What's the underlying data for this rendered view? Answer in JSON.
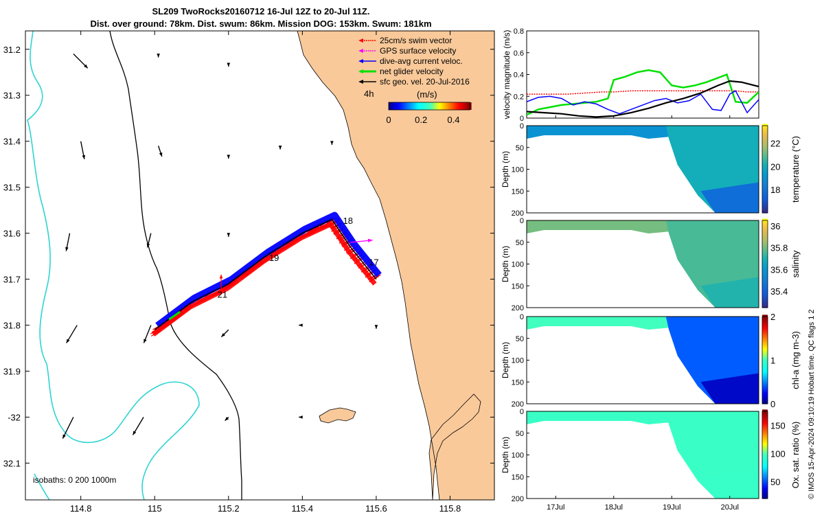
{
  "title_line1": "SL209 TwoRocks20160712 16-Jul 12Z to 20-Jul 11Z.",
  "title_line2": "Dist. over ground: 78km. Dist. swum: 86km. Mission DOG: 153km. Swum: 181km",
  "colors": {
    "land": "#f9c99a",
    "isobath_200": "#000000",
    "isobath_1000": "#2ed3d3",
    "glider_track": "#0000ff",
    "swim_vector": "#ff0000",
    "gps_velocity": "#ff00ff",
    "net_velocity": "#00e000",
    "sfc_geo_velocity": "#000000"
  },
  "chart_data": [
    {
      "id": "map",
      "type": "map",
      "xlim": [
        114.65,
        115.92
      ],
      "ylim": [
        -32.18,
        -31.16
      ],
      "xticks": [
        114.8,
        115,
        115.2,
        115.4,
        115.6,
        115.8
      ],
      "xtick_labels": [
        "114.8",
        "115",
        "115.2",
        "115.4",
        "115.6",
        "115.8"
      ],
      "yticks": [
        -31.2,
        -31.3,
        -31.4,
        -31.5,
        -31.6,
        -31.7,
        -31.8,
        -31.9,
        -32,
        -32.1
      ],
      "ytick_labels": [
        "31.2",
        "31.3",
        "31.4",
        "31.5",
        "31.6",
        "31.7",
        "31.8",
        "31.9",
        "-32",
        "32.1"
      ],
      "legend": [
        {
          "label": "25cm/s swim vector",
          "color": "#ff0000"
        },
        {
          "label": "GPS surface velocity",
          "color": "#ff00ff"
        },
        {
          "label": "dive-avg current veloc.",
          "color": "#0000ff"
        },
        {
          "label": "net glider velocity",
          "color": "#00e000"
        },
        {
          "label": "sfc geo. vel. 20-Jul-2016",
          "color": "#000000"
        }
      ],
      "colorbar": {
        "prefix": "4h",
        "label": "(m/s)",
        "range": [
          0,
          0.5
        ],
        "tick_labels": [
          "0",
          "0.2",
          "0.4"
        ]
      },
      "isobath_text": "isobaths: 0   200  1000m",
      "track": [
        [
          115.0,
          -31.81
        ],
        [
          115.05,
          -31.78
        ],
        [
          115.1,
          -31.75
        ],
        [
          115.2,
          -31.71
        ],
        [
          115.3,
          -31.65
        ],
        [
          115.4,
          -31.6
        ],
        [
          115.48,
          -31.57
        ],
        [
          115.53,
          -31.63
        ],
        [
          115.6,
          -31.7
        ]
      ],
      "day_labels": [
        {
          "text": "18",
          "lon": 115.51,
          "lat": -31.58
        },
        {
          "text": "17",
          "lon": 115.58,
          "lat": -31.67
        },
        {
          "text": "19",
          "lon": 115.31,
          "lat": -31.66
        },
        {
          "text": "21",
          "lon": 115.17,
          "lat": -31.74
        }
      ],
      "current_arrows": [
        {
          "lon": 114.78,
          "lat": -31.21,
          "u": 0.04,
          "v": -0.04
        },
        {
          "lon": 115.01,
          "lat": -31.21,
          "u": 0.0,
          "v": -0.01
        },
        {
          "lon": 115.2,
          "lat": -31.23,
          "u": 0.0,
          "v": -0.01
        },
        {
          "lon": 114.8,
          "lat": -31.4,
          "u": 0.01,
          "v": -0.05
        },
        {
          "lon": 115.01,
          "lat": -31.41,
          "u": 0.01,
          "v": -0.03
        },
        {
          "lon": 115.2,
          "lat": -31.43,
          "u": 0.0,
          "v": -0.01
        },
        {
          "lon": 115.34,
          "lat": -31.41,
          "u": 0.0,
          "v": -0.01
        },
        {
          "lon": 115.48,
          "lat": -31.4,
          "u": 0.0,
          "v": -0.01
        },
        {
          "lon": 114.77,
          "lat": -31.6,
          "u": -0.01,
          "v": -0.05
        },
        {
          "lon": 114.99,
          "lat": -31.6,
          "u": -0.01,
          "v": -0.04
        },
        {
          "lon": 115.2,
          "lat": -31.6,
          "u": 0.0,
          "v": -0.01
        },
        {
          "lon": 114.79,
          "lat": -31.8,
          "u": -0.03,
          "v": -0.05
        },
        {
          "lon": 114.99,
          "lat": -31.8,
          "u": -0.02,
          "v": -0.05
        },
        {
          "lon": 115.2,
          "lat": -31.81,
          "u": -0.02,
          "v": -0.02
        },
        {
          "lon": 115.4,
          "lat": -31.8,
          "u": -0.01,
          "v": 0.0
        },
        {
          "lon": 115.6,
          "lat": -31.8,
          "u": 0.0,
          "v": -0.01
        },
        {
          "lon": 114.78,
          "lat": -32.0,
          "u": -0.03,
          "v": -0.06
        },
        {
          "lon": 114.97,
          "lat": -32.0,
          "u": -0.03,
          "v": -0.05
        },
        {
          "lon": 115.2,
          "lat": -32.0,
          "u": -0.01,
          "v": -0.01
        },
        {
          "lon": 115.4,
          "lat": -32.0,
          "u": -0.01,
          "v": 0.0
        }
      ]
    },
    {
      "id": "velocity",
      "type": "line",
      "ylabel": "velocity magnitude (m/s)",
      "ylim": [
        0,
        0.8
      ],
      "yticks": [
        0,
        0.2,
        0.4,
        0.6,
        0.8
      ],
      "xlim": [
        16.5,
        20.5
      ],
      "series": [
        {
          "name": "25cm/s swim vector",
          "color": "#ff0000",
          "x": [
            16.5,
            16.9,
            17.2,
            17.5,
            17.8,
            18.0,
            18.3,
            18.6,
            18.9,
            19.2,
            19.5,
            19.8,
            20.1,
            20.3,
            20.5
          ],
          "values": [
            0.22,
            0.22,
            0.22,
            0.23,
            0.24,
            0.24,
            0.25,
            0.25,
            0.25,
            0.25,
            0.25,
            0.25,
            0.25,
            0.24,
            0.24
          ]
        },
        {
          "name": "net glider velocity",
          "color": "#00e000",
          "x": [
            16.5,
            16.7,
            16.9,
            17.1,
            17.3,
            17.5,
            17.7,
            17.9,
            18.0,
            18.2,
            18.4,
            18.6,
            18.8,
            19.0,
            19.2,
            19.4,
            19.6,
            19.8,
            19.95,
            20.1,
            20.3,
            20.5
          ],
          "values": [
            0.03,
            0.08,
            0.1,
            0.12,
            0.13,
            0.14,
            0.15,
            0.18,
            0.35,
            0.38,
            0.42,
            0.44,
            0.42,
            0.3,
            0.28,
            0.3,
            0.33,
            0.37,
            0.4,
            0.15,
            0.14,
            0.24
          ]
        },
        {
          "name": "dive-avg current veloc.",
          "color": "#0000ff",
          "x": [
            16.5,
            16.7,
            16.9,
            17.1,
            17.3,
            17.5,
            17.7,
            17.9,
            18.1,
            18.3,
            18.5,
            18.7,
            18.9,
            19.1,
            19.3,
            19.5,
            19.7,
            19.85,
            20.0,
            20.1,
            20.3,
            20.5
          ],
          "values": [
            0.15,
            0.19,
            0.2,
            0.18,
            0.12,
            0.15,
            0.13,
            0.08,
            0.04,
            0.08,
            0.12,
            0.16,
            0.18,
            0.14,
            0.16,
            0.22,
            0.08,
            0.07,
            0.22,
            0.25,
            0.05,
            0.17
          ]
        },
        {
          "name": "sfc geo. vel.",
          "color": "#000000",
          "x": [
            16.5,
            16.8,
            17.1,
            17.4,
            17.7,
            18.0,
            18.3,
            18.6,
            18.9,
            19.2,
            19.5,
            19.8,
            20.0,
            20.2,
            20.5
          ],
          "values": [
            0.06,
            0.05,
            0.04,
            0.02,
            0.01,
            0.02,
            0.05,
            0.09,
            0.14,
            0.18,
            0.23,
            0.3,
            0.34,
            0.33,
            0.29
          ]
        }
      ]
    },
    {
      "id": "temperature",
      "type": "section",
      "colormap": "parula",
      "ylabel": "Depth (m)",
      "ylim": [
        0,
        200
      ],
      "yticks": [
        0,
        50,
        100,
        150,
        200
      ],
      "colorbar_label": "temperature (°C)",
      "clim": [
        16,
        23.5
      ],
      "colorbar_ticks": [
        18,
        20,
        22
      ],
      "surface_value": 19.0,
      "deep_value": 20.0,
      "bottom_value": 17.5
    },
    {
      "id": "salinity",
      "type": "section",
      "colormap": "parula",
      "ylabel": "Depth (m)",
      "ylim": [
        0,
        200
      ],
      "yticks": [
        0,
        50,
        100,
        150,
        200
      ],
      "colorbar_label": "salinity",
      "clim": [
        35.25,
        36.05
      ],
      "colorbar_ticks": [
        35.4,
        35.6,
        35.8,
        36
      ],
      "colorbar_tick_labels": [
        "35.4",
        "35.6",
        "35.8",
        "36"
      ],
      "surface_value": 35.8,
      "deep_value": 35.75,
      "bottom_value": 35.7
    },
    {
      "id": "chla",
      "type": "section",
      "colormap": "jet",
      "ylabel": "Depth (m)",
      "ylim": [
        0,
        200
      ],
      "yticks": [
        0,
        50,
        100,
        150,
        200
      ],
      "colorbar_label": "chl-a (mg m-3)",
      "clim": [
        0,
        2
      ],
      "colorbar_ticks": [
        0,
        1,
        2
      ],
      "surface_value": 1.0,
      "deep_value": 0.4,
      "bottom_value": 0.1
    },
    {
      "id": "oxygen",
      "type": "section",
      "colormap": "jet",
      "ylabel": "Depth (m)",
      "ylim": [
        0,
        200
      ],
      "yticks": [
        0,
        50,
        100,
        150,
        200
      ],
      "colorbar_label": "Ox. sat. ratio (%)",
      "clim": [
        20,
        175
      ],
      "colorbar_ticks": [
        50,
        100,
        150
      ],
      "surface_value": 95,
      "deep_value": 95,
      "bottom_value": 95,
      "xticks": [
        17,
        18,
        19,
        20
      ],
      "xtick_labels": [
        "17Jul",
        "18Jul",
        "19Jul",
        "20Jul"
      ]
    }
  ],
  "footnote": "© IMOS 15-Apr-2024 09:10:19 Hobart time. QC flags 1  2"
}
